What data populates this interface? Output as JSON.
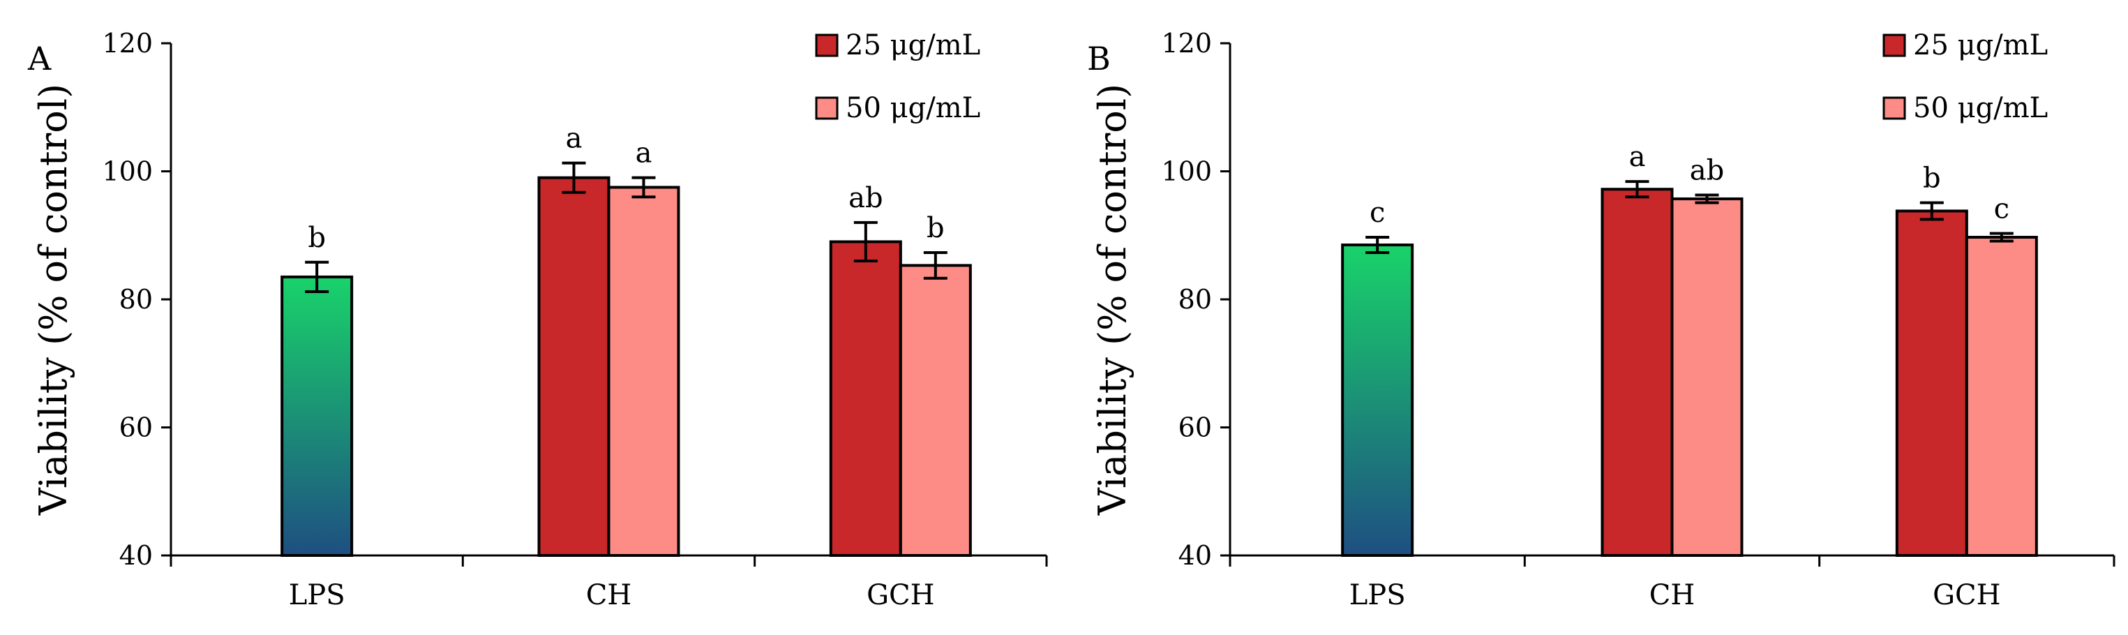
{
  "colors": {
    "conc25": "#c8282a",
    "conc50": "#fd8c86",
    "lps_top": "#19d36a",
    "lps_bottom": "#1e4f82",
    "axis": "#000000"
  },
  "chart_data": [
    {
      "type": "bar",
      "panel": "A",
      "ylabel": "Viability (% of control)",
      "ylim": [
        40,
        120
      ],
      "yticks": [
        40,
        60,
        80,
        100,
        120
      ],
      "categories": [
        "LPS",
        "CH",
        "GCH"
      ],
      "legend": [
        "25 μg/mL",
        "50 μg/mL"
      ],
      "bars": [
        {
          "category": "LPS",
          "series": "LPS",
          "value": 83.5,
          "error": 2.3,
          "label": "b"
        },
        {
          "category": "CH",
          "series": "25 μg/mL",
          "value": 99.0,
          "error": 2.3,
          "label": "a"
        },
        {
          "category": "CH",
          "series": "50 μg/mL",
          "value": 97.5,
          "error": 1.5,
          "label": "a"
        },
        {
          "category": "GCH",
          "series": "25 μg/mL",
          "value": 89.0,
          "error": 3.0,
          "label": "ab"
        },
        {
          "category": "GCH",
          "series": "50 μg/mL",
          "value": 85.3,
          "error": 2.0,
          "label": "b"
        }
      ]
    },
    {
      "type": "bar",
      "panel": "B",
      "ylabel": "Viability (% of control)",
      "ylim": [
        40,
        120
      ],
      "yticks": [
        40,
        60,
        80,
        100,
        120
      ],
      "categories": [
        "LPS",
        "CH",
        "GCH"
      ],
      "legend": [
        "25 μg/mL",
        "50 μg/mL"
      ],
      "bars": [
        {
          "category": "LPS",
          "series": "LPS",
          "value": 88.5,
          "error": 1.2,
          "label": "c"
        },
        {
          "category": "CH",
          "series": "25 μg/mL",
          "value": 97.2,
          "error": 1.2,
          "label": "a"
        },
        {
          "category": "CH",
          "series": "50 μg/mL",
          "value": 95.7,
          "error": 0.6,
          "label": "ab"
        },
        {
          "category": "GCH",
          "series": "25 μg/mL",
          "value": 93.8,
          "error": 1.3,
          "label": "b"
        },
        {
          "category": "GCH",
          "series": "50 μg/mL",
          "value": 89.7,
          "error": 0.6,
          "label": "c"
        }
      ]
    }
  ]
}
